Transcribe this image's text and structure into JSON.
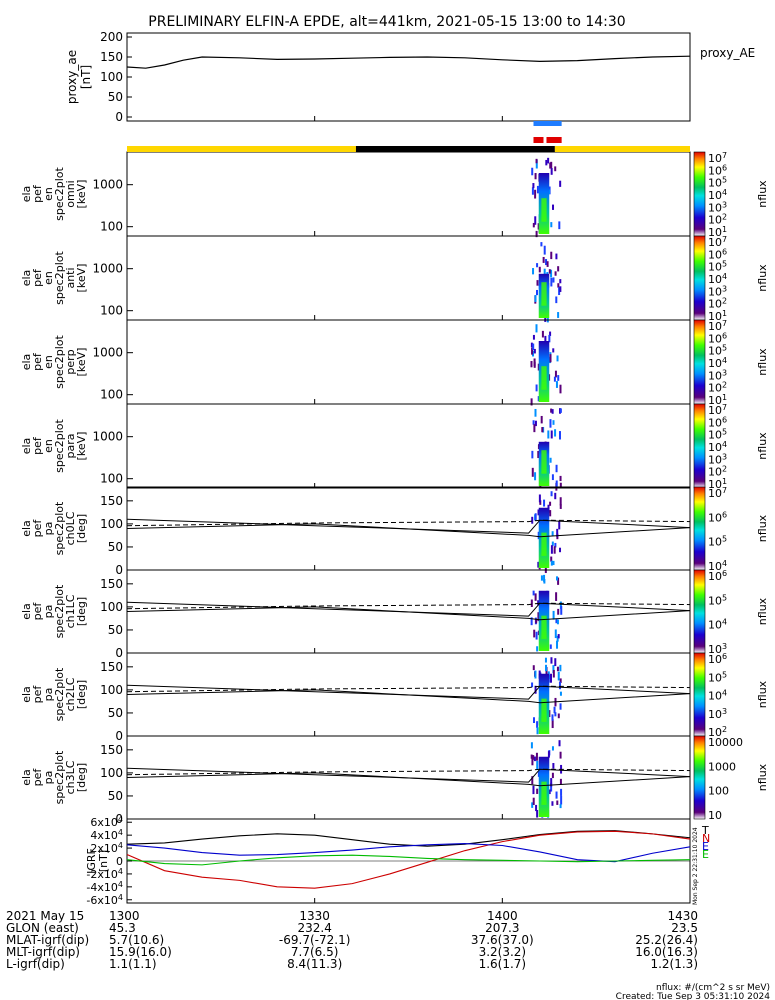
{
  "title": "PRELIMINARY ELFIN-A EPDE, alt=441km, 2021-05-15 13:00 to 14:30",
  "x_ticks": [
    "1300",
    "1330",
    "1400",
    "1430"
  ],
  "x_tick_hours": [
    13.0,
    13.5,
    14.0,
    14.5
  ],
  "x_range_hours": [
    13.0,
    14.5
  ],
  "proxy_ae": {
    "ylabel_lines": [
      "proxy_ae",
      "[nT]"
    ],
    "right_label": "proxy_AE",
    "yticks": [
      "200",
      "150",
      "100",
      "50",
      "0"
    ],
    "ytick_values": [
      200,
      150,
      100,
      50,
      0
    ],
    "ylim": [
      -10,
      210
    ]
  },
  "energy_panels": [
    {
      "ylabel_lines": [
        "ela",
        "pef",
        "en",
        "spec2plot",
        "omni",
        "[keV]"
      ],
      "yticks": [
        "1000",
        "100"
      ],
      "ytick_values": [
        1000,
        100
      ],
      "ylim": [
        60,
        6000
      ],
      "cbar_ticks": [
        "10^7",
        "10^6",
        "10^5",
        "10^4",
        "10^3",
        "10^2",
        "10^1"
      ],
      "cbar_label": "nflux"
    },
    {
      "ylabel_lines": [
        "ela",
        "pef",
        "en",
        "spec2plot",
        "anti",
        "[keV]"
      ],
      "yticks": [
        "1000",
        "100"
      ],
      "ytick_values": [
        1000,
        100
      ],
      "ylim": [
        60,
        6000
      ],
      "cbar_ticks": [
        "10^7",
        "10^6",
        "10^5",
        "10^4",
        "10^3",
        "10^2",
        "10^1"
      ],
      "cbar_label": "nflux"
    },
    {
      "ylabel_lines": [
        "ela",
        "pef",
        "en",
        "spec2plot",
        "perp",
        "[keV]"
      ],
      "yticks": [
        "1000",
        "100"
      ],
      "ytick_values": [
        1000,
        100
      ],
      "ylim": [
        60,
        6000
      ],
      "cbar_ticks": [
        "10^7",
        "10^6",
        "10^5",
        "10^4",
        "10^3",
        "10^2",
        "10^1"
      ],
      "cbar_label": "nflux"
    },
    {
      "ylabel_lines": [
        "ela",
        "pef",
        "en",
        "spec2plot",
        "para",
        "[keV]"
      ],
      "yticks": [
        "1000",
        "100"
      ],
      "ytick_values": [
        1000,
        100
      ],
      "ylim": [
        60,
        6000
      ],
      "cbar_ticks": [
        "10^7",
        "10^6",
        "10^5",
        "10^4",
        "10^3",
        "10^2",
        "10^1"
      ],
      "cbar_label": "nflux"
    }
  ],
  "pa_panels": [
    {
      "ylabel_lines": [
        "ela",
        "pef",
        "pa",
        "spec2plot",
        "ch0LC",
        "[deg]"
      ],
      "yticks": [
        "150",
        "100",
        "50",
        "0"
      ],
      "ytick_values": [
        150,
        100,
        50,
        0
      ],
      "ylim": [
        0,
        180
      ],
      "cbar_ticks": [
        "10^7",
        "10^6",
        "10^5",
        "10^4"
      ],
      "cbar_label": "nflux"
    },
    {
      "ylabel_lines": [
        "ela",
        "pef",
        "pa",
        "spec2plot",
        "ch1LC",
        "[deg]"
      ],
      "yticks": [
        "150",
        "100",
        "50",
        "0"
      ],
      "ytick_values": [
        150,
        100,
        50,
        0
      ],
      "ylim": [
        0,
        180
      ],
      "cbar_ticks": [
        "10^6",
        "10^5",
        "10^4",
        "10^3"
      ],
      "cbar_label": "nflux"
    },
    {
      "ylabel_lines": [
        "ela",
        "pef",
        "pa",
        "spec2plot",
        "ch2LC",
        "[deg]"
      ],
      "yticks": [
        "150",
        "100",
        "50",
        "0"
      ],
      "ytick_values": [
        150,
        100,
        50,
        0
      ],
      "ylim": [
        0,
        180
      ],
      "cbar_ticks": [
        "10^6",
        "10^5",
        "10^4",
        "10^3",
        "10^2"
      ],
      "cbar_label": "nflux"
    },
    {
      "ylabel_lines": [
        "ela",
        "pef",
        "pa",
        "spec2plot",
        "ch3LC",
        "[deg]"
      ],
      "yticks": [
        "150",
        "100",
        "50",
        "0"
      ],
      "ytick_values": [
        150,
        100,
        50,
        0
      ],
      "ylim": [
        0,
        180
      ],
      "cbar_ticks": [
        "10000",
        "1000",
        "100",
        "10"
      ],
      "cbar_label": "nflux"
    }
  ],
  "igrf": {
    "ylabel_lines": [
      "IGRF",
      "[nT]"
    ],
    "yticks": [
      "6x10^4",
      "4x10^4",
      "2x10^4",
      "0",
      "-2x10^4",
      "-4x10^4",
      "-6x10^4"
    ],
    "ytick_values": [
      60000,
      40000,
      20000,
      0,
      -20000,
      -40000,
      -60000
    ],
    "ylim": [
      -65000,
      65000
    ],
    "legend": [
      {
        "label": "T",
        "color": "#000000"
      },
      {
        "label": "N",
        "color": "#cc0000"
      },
      {
        "label": "E",
        "color": "#0000cc"
      },
      {
        "label": "E",
        "color": "#00bb00"
      }
    ],
    "side_text": "Mon Sep  2 22:31:10 2024"
  },
  "chart_data": {
    "type": "heatmap",
    "title": "PRELIMINARY ELFIN-A EPDE, alt=441km, 2021-05-15 13:00 to 14:30",
    "x_unit": "UT hour",
    "proxy_ae_series": {
      "x": [
        13.0,
        13.05,
        13.1,
        13.15,
        13.2,
        13.3,
        13.4,
        13.5,
        13.6,
        13.7,
        13.8,
        13.9,
        14.0,
        14.1,
        14.2,
        14.3,
        14.4,
        14.5
      ],
      "y": [
        125,
        122,
        130,
        142,
        150,
        148,
        144,
        145,
        147,
        149,
        150,
        148,
        143,
        139,
        141,
        146,
        150,
        152
      ]
    },
    "science_interval_hours": [
      14.083,
      14.158
    ],
    "orbit_bar_segments": [
      {
        "start": 13.0,
        "end": 13.61,
        "color": "#ffd700"
      },
      {
        "start": 13.61,
        "end": 14.14,
        "color": "#000000"
      },
      {
        "start": 14.14,
        "end": 14.5,
        "color": "#ffd700"
      }
    ],
    "flux_patch_hours": [
      14.075,
      14.155
    ],
    "loss_cone_lines": {
      "x": [
        13.0,
        13.5,
        14.07,
        14.1,
        14.5
      ],
      "solid_upper": [
        110,
        96,
        80,
        108,
        92
      ],
      "solid_lower": [
        90,
        100,
        75,
        72,
        92
      ],
      "dashed": [
        96,
        102,
        105,
        108,
        105
      ]
    },
    "igrf_series": [
      {
        "name": "T",
        "color": "#000000",
        "x": [
          13.0,
          13.1,
          13.2,
          13.3,
          13.4,
          13.5,
          13.6,
          13.7,
          13.8,
          13.9,
          14.0,
          14.1,
          14.2,
          14.3,
          14.4,
          14.5
        ],
        "y": [
          26000,
          28000,
          34000,
          39000,
          42000,
          40000,
          33000,
          26000,
          23000,
          26000,
          33000,
          41000,
          46000,
          47000,
          42000,
          36000
        ]
      },
      {
        "name": "N",
        "color": "#cc0000",
        "x": [
          13.0,
          13.1,
          13.2,
          13.3,
          13.4,
          13.5,
          13.6,
          13.7,
          13.8,
          13.9,
          14.0,
          14.1,
          14.2,
          14.3,
          14.4,
          14.5
        ],
        "y": [
          10000,
          -15000,
          -25000,
          -30000,
          -40000,
          -42000,
          -35000,
          -20000,
          -2000,
          16000,
          30000,
          40000,
          45000,
          46000,
          42000,
          34000
        ]
      },
      {
        "name": "E",
        "color": "#0000cc",
        "x": [
          13.0,
          13.1,
          13.2,
          13.3,
          13.4,
          13.5,
          13.6,
          13.7,
          13.8,
          13.9,
          14.0,
          14.1,
          14.2,
          14.3,
          14.4,
          14.5
        ],
        "y": [
          25000,
          20000,
          13000,
          9000,
          10000,
          13000,
          17000,
          22000,
          25000,
          27000,
          24000,
          14000,
          2000,
          -1000,
          12000,
          22000
        ]
      },
      {
        "name": "E",
        "color": "#00bb00",
        "x": [
          13.0,
          13.1,
          13.2,
          13.3,
          13.4,
          13.5,
          13.6,
          13.7,
          13.8,
          13.9,
          14.0,
          14.1,
          14.2,
          14.3,
          14.4,
          14.5
        ],
        "y": [
          2000,
          -4000,
          -6000,
          0,
          5000,
          8000,
          9000,
          7000,
          4000,
          2000,
          1000,
          0,
          -1000,
          0,
          1000,
          2000
        ]
      }
    ]
  },
  "ephemeris": {
    "rows": [
      {
        "label": "2021 May 15",
        "values": [
          "1300",
          "1330",
          "1400",
          "1430"
        ]
      },
      {
        "label": "GLON (east)",
        "values": [
          "45.3",
          "232.4",
          "207.3",
          "23.5"
        ]
      },
      {
        "label": "MLAT-igrf(dip)",
        "values": [
          "5.7(10.6)",
          "-69.7(-72.1)",
          "37.6(37.0)",
          "25.2(26.4)"
        ]
      },
      {
        "label": "MLT-igrf(dip)",
        "values": [
          "15.9(16.0)",
          "7.7(6.5)",
          "3.2(3.2)",
          "16.0(16.3)"
        ]
      },
      {
        "label": "L-igrf(dip)",
        "values": [
          "1.1(1.1)",
          "8.4(11.3)",
          "1.6(1.7)",
          "1.2(1.3)"
        ]
      }
    ]
  },
  "footer": {
    "units": "nflux: #/(cm^2 s sr MeV)",
    "created": "Created: Tue Sep  3 05:31:10 2024"
  }
}
